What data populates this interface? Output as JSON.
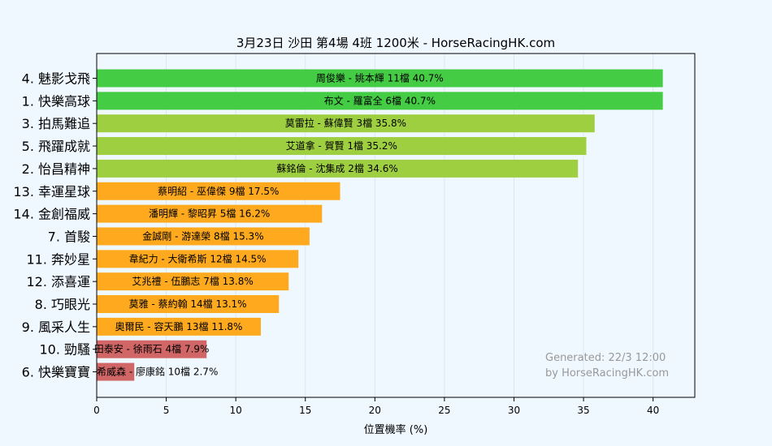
{
  "chart_data": {
    "type": "bar",
    "orientation": "horizontal",
    "title": "3月23日  沙田  第4場  4班  1200米 - HorseRacingHK.com",
    "xlabel": "位置機率 (%)",
    "ylabel": "",
    "xlim": [
      0,
      43
    ],
    "xticks": [
      0,
      5,
      10,
      15,
      20,
      25,
      30,
      35,
      40
    ],
    "grid": true,
    "colors": {
      "green": "#44cc44",
      "lightgreen": "#9ecf41",
      "orange": "#ffaa1e",
      "red": "#d06666",
      "background": "#f0f8ff",
      "plot_background": "#f0f8ff"
    },
    "bars": [
      {
        "category": "4. 魅影戈飛",
        "value": 40.7,
        "label": "周俊樂 - 姚本輝 11檔  40.7%",
        "color": "green"
      },
      {
        "category": "1. 快樂高球",
        "value": 40.7,
        "label": "布文 - 羅富全 6檔  40.7%",
        "color": "green"
      },
      {
        "category": "3. 拍馬難追",
        "value": 35.8,
        "label": "莫雷拉 - 蘇偉賢 3檔  35.8%",
        "color": "lightgreen"
      },
      {
        "category": "5. 飛躍成就",
        "value": 35.2,
        "label": "艾道拿 - 賀賢 1檔  35.2%",
        "color": "lightgreen"
      },
      {
        "category": "2. 怡昌精神",
        "value": 34.6,
        "label": "蘇銘倫 - 沈集成 2檔  34.6%",
        "color": "lightgreen"
      },
      {
        "category": "13. 幸運星球",
        "value": 17.5,
        "label": "蔡明紹 - 巫偉傑 9檔  17.5%",
        "color": "orange"
      },
      {
        "category": "14. 金創福威",
        "value": 16.2,
        "label": "潘明輝 - 黎昭昇 5檔  16.2%",
        "color": "orange"
      },
      {
        "category": "7. 首駿",
        "value": 15.3,
        "label": "金誠剛 - 游達榮 8檔  15.3%",
        "color": "orange"
      },
      {
        "category": "11. 奔妙星",
        "value": 14.5,
        "label": "韋紀力 - 大衛希斯 12檔  14.5%",
        "color": "orange"
      },
      {
        "category": "12. 添喜運",
        "value": 13.8,
        "label": "艾兆禮 - 伍鵬志 7檔  13.8%",
        "color": "orange"
      },
      {
        "category": "8. 巧眼光",
        "value": 13.1,
        "label": "莫雅 - 蔡約翰 14檔  13.1%",
        "color": "orange"
      },
      {
        "category": "9. 風采人生",
        "value": 11.8,
        "label": "奧爾民 - 容天鵬 13檔  11.8%",
        "color": "orange"
      },
      {
        "category": "10. 勁騷",
        "value": 7.9,
        "label": "田泰安 - 徐雨石 4檔  7.9%",
        "color": "red"
      },
      {
        "category": "6. 快樂寶寶",
        "value": 2.7,
        "label": "希威森 - 廖康銘 10檔  2.7%",
        "color": "red"
      }
    ],
    "annotation": [
      "Generated: 22/3 12:00",
      "by HorseRacingHK.com"
    ]
  }
}
